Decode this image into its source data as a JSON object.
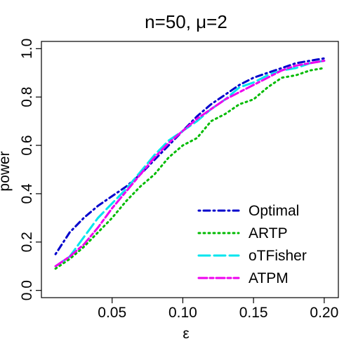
{
  "chart_data": {
    "type": "line",
    "title": "n=50, μ=2",
    "xlabel": "ε",
    "ylabel": "power",
    "xlim": [
      0.0,
      0.21
    ],
    "ylim": [
      -0.03,
      1.03
    ],
    "x_ticks": [
      0.05,
      0.1,
      0.15,
      0.2
    ],
    "x_tick_labels": [
      "0.05",
      "0.10",
      "0.15",
      "0.20"
    ],
    "y_ticks": [
      0.0,
      0.2,
      0.4,
      0.6,
      0.8,
      1.0
    ],
    "y_tick_labels": [
      "0.0",
      "0.2",
      "0.4",
      "0.6",
      "0.8",
      "1.0"
    ],
    "grid": false,
    "legend_position": "bottom-right",
    "x": [
      0.01,
      0.02,
      0.03,
      0.04,
      0.05,
      0.06,
      0.07,
      0.08,
      0.09,
      0.1,
      0.11,
      0.12,
      0.13,
      0.14,
      0.15,
      0.16,
      0.17,
      0.18,
      0.19,
      0.2
    ],
    "series": [
      {
        "name": "Optimal",
        "color": "#0000cc",
        "dash": "dotdash",
        "values": [
          0.15,
          0.24,
          0.3,
          0.35,
          0.39,
          0.43,
          0.48,
          0.54,
          0.6,
          0.66,
          0.72,
          0.77,
          0.81,
          0.85,
          0.88,
          0.9,
          0.92,
          0.94,
          0.95,
          0.96
        ]
      },
      {
        "name": "ARTP",
        "color": "#00bb00",
        "dash": "dotted",
        "values": [
          0.09,
          0.13,
          0.18,
          0.24,
          0.3,
          0.37,
          0.43,
          0.48,
          0.55,
          0.6,
          0.63,
          0.7,
          0.73,
          0.77,
          0.79,
          0.84,
          0.88,
          0.89,
          0.91,
          0.92
        ]
      },
      {
        "name": "oTFisher",
        "color": "#00e5ee",
        "dash": "longdash",
        "values": [
          0.1,
          0.14,
          0.22,
          0.3,
          0.36,
          0.42,
          0.49,
          0.56,
          0.62,
          0.66,
          0.7,
          0.75,
          0.79,
          0.84,
          0.86,
          0.89,
          0.91,
          0.92,
          0.94,
          0.95
        ]
      },
      {
        "name": "ATPM",
        "color": "#ee00ee",
        "dash": "twodash",
        "values": [
          0.1,
          0.14,
          0.19,
          0.26,
          0.34,
          0.41,
          0.48,
          0.55,
          0.61,
          0.66,
          0.71,
          0.75,
          0.79,
          0.82,
          0.85,
          0.88,
          0.91,
          0.93,
          0.94,
          0.95
        ]
      }
    ]
  }
}
